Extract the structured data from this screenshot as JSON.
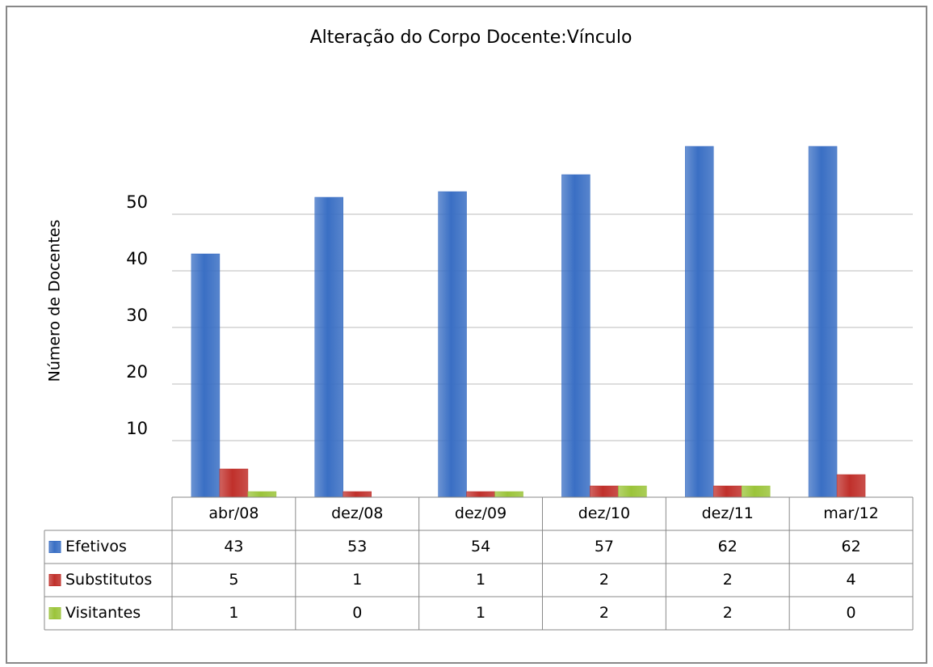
{
  "chart_data": {
    "type": "bar",
    "title": "Alteração do Corpo Docente:Vínculo",
    "y_label": "Número de Docentes",
    "categories": [
      "abr/08",
      "dez/08",
      "dez/09",
      "dez/10",
      "dez/11",
      "mar/12"
    ],
    "series": [
      {
        "name": "Efetivos",
        "color": "#3a6fc4",
        "values": [
          43,
          53,
          54,
          57,
          62,
          62
        ]
      },
      {
        "name": "Substitutos",
        "color": "#c0302b",
        "values": [
          5,
          1,
          1,
          2,
          2,
          4
        ]
      },
      {
        "name": "Visitantes",
        "color": "#9bc43a",
        "values": [
          1,
          0,
          1,
          2,
          2,
          0
        ]
      }
    ],
    "ylim": [
      0,
      70
    ],
    "yticks": [
      10,
      20,
      30,
      40,
      50
    ],
    "grid": true
  }
}
